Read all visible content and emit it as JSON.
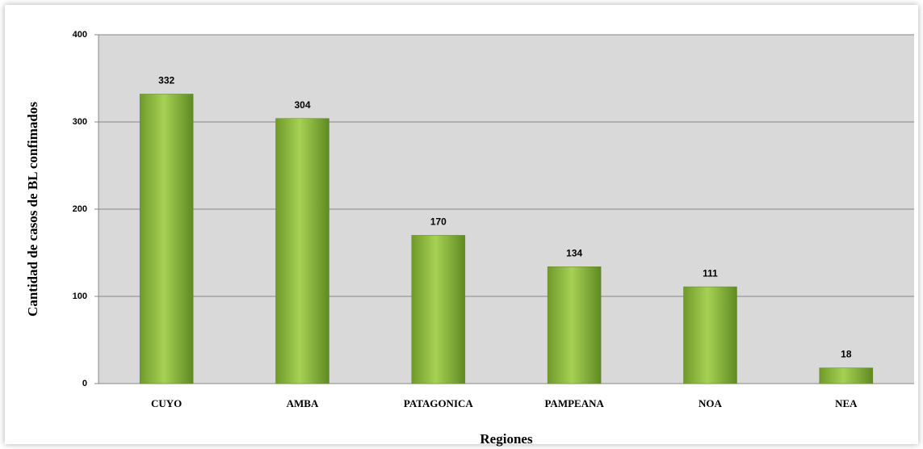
{
  "chart_data": {
    "type": "bar",
    "x_label": "Regiones",
    "y_label": "Cantidad de casos de BL confimados",
    "categories": [
      "CUYO",
      "AMBA",
      "PATAGONICA",
      "PAMPEANA",
      "NOA",
      "NEA"
    ],
    "values": [
      332,
      304,
      170,
      134,
      111,
      18
    ],
    "color": "#8cc63f",
    "ylim": [
      0,
      400
    ],
    "yticks": [
      0,
      100,
      200,
      300,
      400
    ],
    "grid": true
  }
}
